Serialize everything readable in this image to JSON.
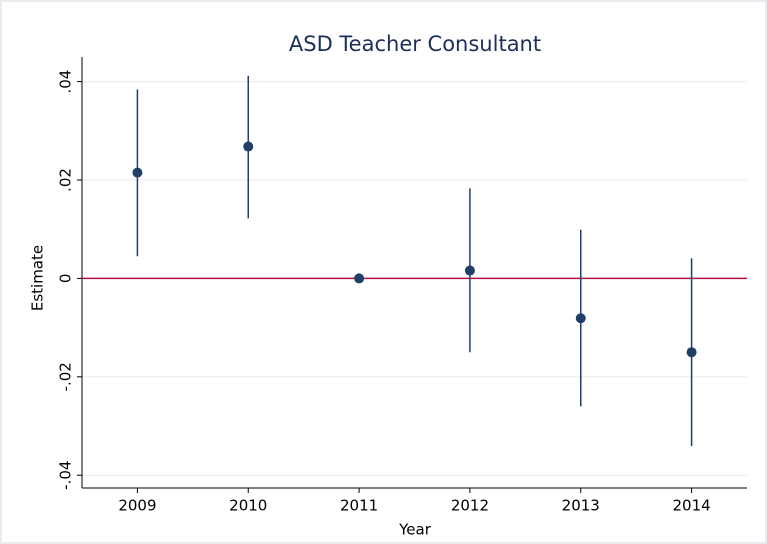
{
  "chart_data": {
    "type": "errorbar",
    "title": "ASD Teacher Consultant",
    "x_label": "Year",
    "y_label": "Estimate",
    "x": [
      2009,
      2010,
      2011,
      2012,
      2013,
      2014
    ],
    "values": [
      0.0215,
      0.0268,
      0,
      0.0016,
      -0.0081,
      -0.015
    ],
    "lower": [
      0.0045,
      0.0122,
      null,
      -0.015,
      -0.026,
      -0.0341
    ],
    "upper": [
      0.0384,
      0.0412,
      null,
      0.0183,
      0.0099,
      0.0041
    ],
    "color": "#1f3f66",
    "reference_line": 0,
    "reference_color": "#b0123f",
    "xlim": [
      2008.5,
      2014.5
    ],
    "xticks": [
      2009,
      2010,
      2011,
      2012,
      2013,
      2014
    ],
    "ylim": [
      -0.0426,
      0.045
    ],
    "yticks": [
      {
        "value": -0.04,
        "label": "-.04"
      },
      {
        "value": -0.02,
        "label": "-.02"
      },
      0,
      {
        "value": 0.02,
        "label": ".02"
      },
      {
        "value": 0.04,
        "label": ".04"
      }
    ],
    "grid": true
  }
}
